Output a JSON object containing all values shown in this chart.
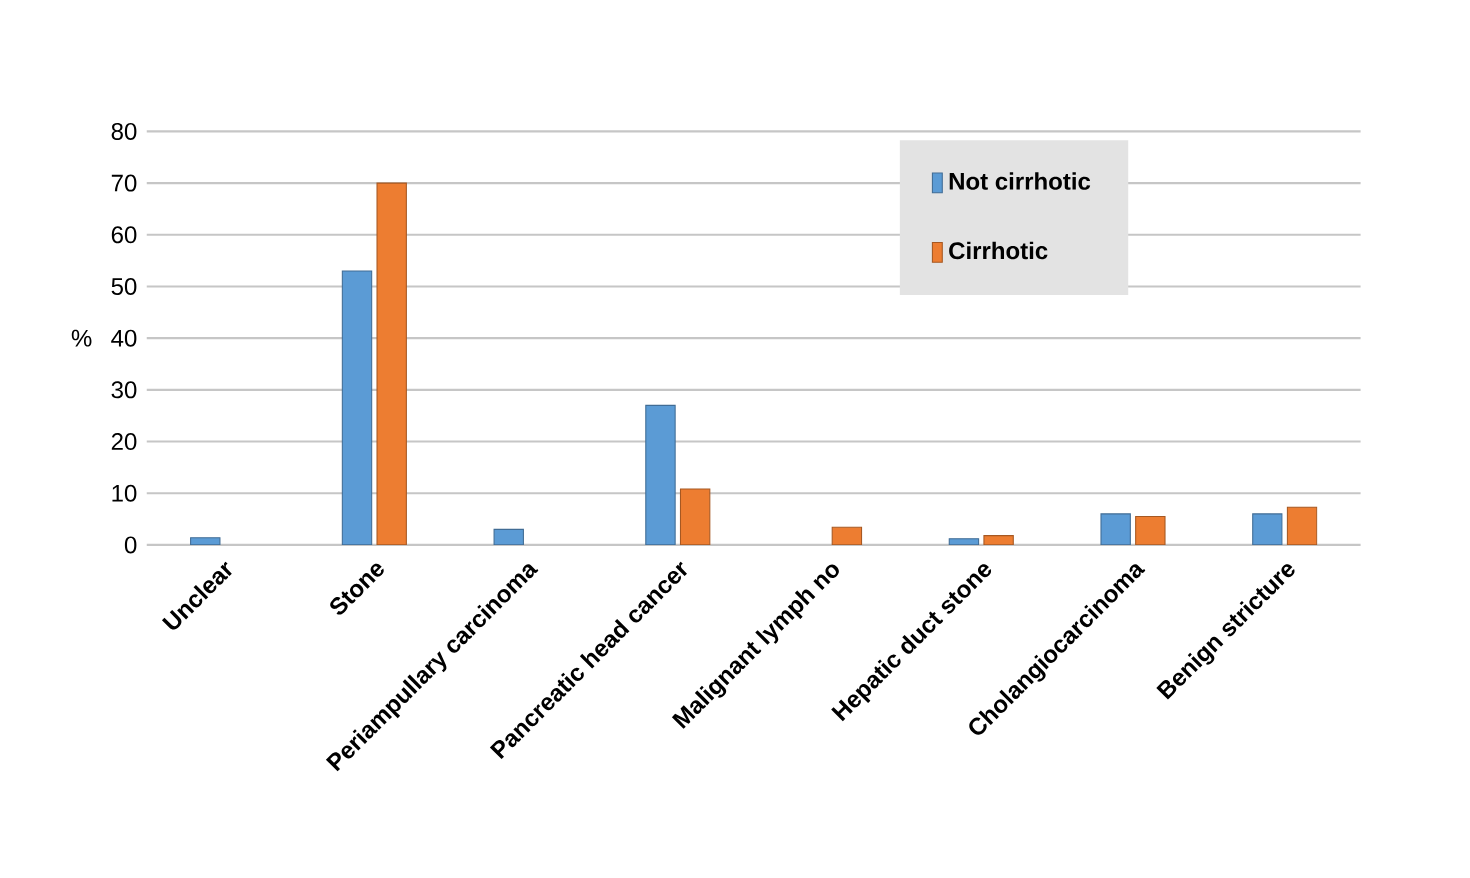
{
  "chart_data": {
    "type": "bar",
    "ylabel": "%",
    "categories": [
      "Unclear",
      "Stone",
      "Periampullary carcinoma",
      "Pancreatic head cancer",
      "Malignant lymph no",
      "Hepatic duct stone",
      "Cholangiocarcinoma",
      "Benign stricture"
    ],
    "series": [
      {
        "name": "Not cirrhotic",
        "color": "#5b9bd5",
        "values": [
          1.4,
          53,
          3,
          27,
          null,
          1.2,
          6,
          6
        ]
      },
      {
        "name": "Cirrhotic",
        "color": "#ed7d31",
        "values": [
          null,
          70,
          null,
          10.8,
          3.4,
          1.8,
          5.5,
          7.3
        ]
      }
    ],
    "ylim": [
      0,
      80
    ],
    "yticks": [
      0,
      10,
      20,
      30,
      40,
      50,
      60,
      70,
      80
    ],
    "grid": "y",
    "legend": "top right"
  }
}
